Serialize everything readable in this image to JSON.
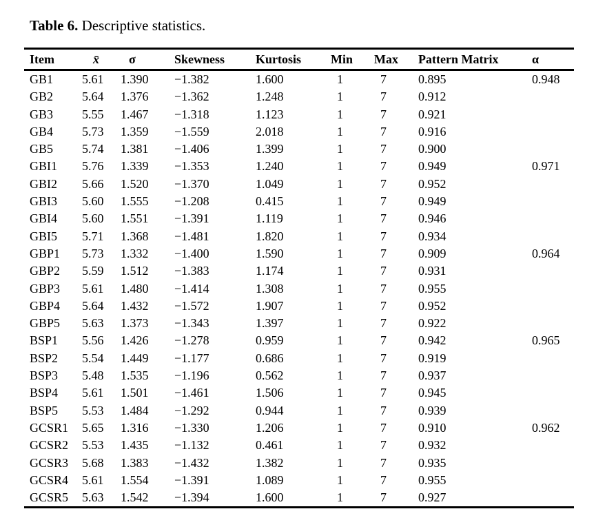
{
  "caption": {
    "label": "Table 6.",
    "text": " Descriptive statistics."
  },
  "table": {
    "columns": [
      "Item",
      "x̄",
      "σ",
      "Skewness",
      "Kurtosis",
      "Min",
      "Max",
      "Pattern Matrix",
      "α"
    ],
    "rows": [
      [
        "GB1",
        "5.61",
        "1.390",
        "−1.382",
        "1.600",
        "1",
        "7",
        "0.895",
        "0.948"
      ],
      [
        "GB2",
        "5.64",
        "1.376",
        "−1.362",
        "1.248",
        "1",
        "7",
        "0.912",
        ""
      ],
      [
        "GB3",
        "5.55",
        "1.467",
        "−1.318",
        "1.123",
        "1",
        "7",
        "0.921",
        ""
      ],
      [
        "GB4",
        "5.73",
        "1.359",
        "−1.559",
        "2.018",
        "1",
        "7",
        "0.916",
        ""
      ],
      [
        "GB5",
        "5.74",
        "1.381",
        "−1.406",
        "1.399",
        "1",
        "7",
        "0.900",
        ""
      ],
      [
        "GBI1",
        "5.76",
        "1.339",
        "−1.353",
        "1.240",
        "1",
        "7",
        "0.949",
        "0.971"
      ],
      [
        "GBI2",
        "5.66",
        "1.520",
        "−1.370",
        "1.049",
        "1",
        "7",
        "0.952",
        ""
      ],
      [
        "GBI3",
        "5.60",
        "1.555",
        "−1.208",
        "0.415",
        "1",
        "7",
        "0.949",
        ""
      ],
      [
        "GBI4",
        "5.60",
        "1.551",
        "−1.391",
        "1.119",
        "1",
        "7",
        "0.946",
        ""
      ],
      [
        "GBI5",
        "5.71",
        "1.368",
        "−1.481",
        "1.820",
        "1",
        "7",
        "0.934",
        ""
      ],
      [
        "GBP1",
        "5.73",
        "1.332",
        "−1.400",
        "1.590",
        "1",
        "7",
        "0.909",
        "0.964"
      ],
      [
        "GBP2",
        "5.59",
        "1.512",
        "−1.383",
        "1.174",
        "1",
        "7",
        "0.931",
        ""
      ],
      [
        "GBP3",
        "5.61",
        "1.480",
        "−1.414",
        "1.308",
        "1",
        "7",
        "0.955",
        ""
      ],
      [
        "GBP4",
        "5.64",
        "1.432",
        "−1.572",
        "1.907",
        "1",
        "7",
        "0.952",
        ""
      ],
      [
        "GBP5",
        "5.63",
        "1.373",
        "−1.343",
        "1.397",
        "1",
        "7",
        "0.922",
        ""
      ],
      [
        "BSP1",
        "5.56",
        "1.426",
        "−1.278",
        "0.959",
        "1",
        "7",
        "0.942",
        "0.965"
      ],
      [
        "BSP2",
        "5.54",
        "1.449",
        "−1.177",
        "0.686",
        "1",
        "7",
        "0.919",
        ""
      ],
      [
        "BSP3",
        "5.48",
        "1.535",
        "−1.196",
        "0.562",
        "1",
        "7",
        "0.937",
        ""
      ],
      [
        "BSP4",
        "5.61",
        "1.501",
        "−1.461",
        "1.506",
        "1",
        "7",
        "0.945",
        ""
      ],
      [
        "BSP5",
        "5.53",
        "1.484",
        "−1.292",
        "0.944",
        "1",
        "7",
        "0.939",
        ""
      ],
      [
        "GCSR1",
        "5.65",
        "1.316",
        "−1.330",
        "1.206",
        "1",
        "7",
        "0.910",
        "0.962"
      ],
      [
        "GCSR2",
        "5.53",
        "1.435",
        "−1.132",
        "0.461",
        "1",
        "7",
        "0.932",
        ""
      ],
      [
        "GCSR3",
        "5.68",
        "1.383",
        "−1.432",
        "1.382",
        "1",
        "7",
        "0.935",
        ""
      ],
      [
        "GCSR4",
        "5.61",
        "1.554",
        "−1.391",
        "1.089",
        "1",
        "7",
        "0.955",
        ""
      ],
      [
        "GCSR5",
        "5.63",
        "1.542",
        "−1.394",
        "1.600",
        "1",
        "7",
        "0.927",
        ""
      ]
    ]
  },
  "colors": {
    "text": "#000000",
    "background": "#ffffff",
    "rule": "#000000"
  }
}
